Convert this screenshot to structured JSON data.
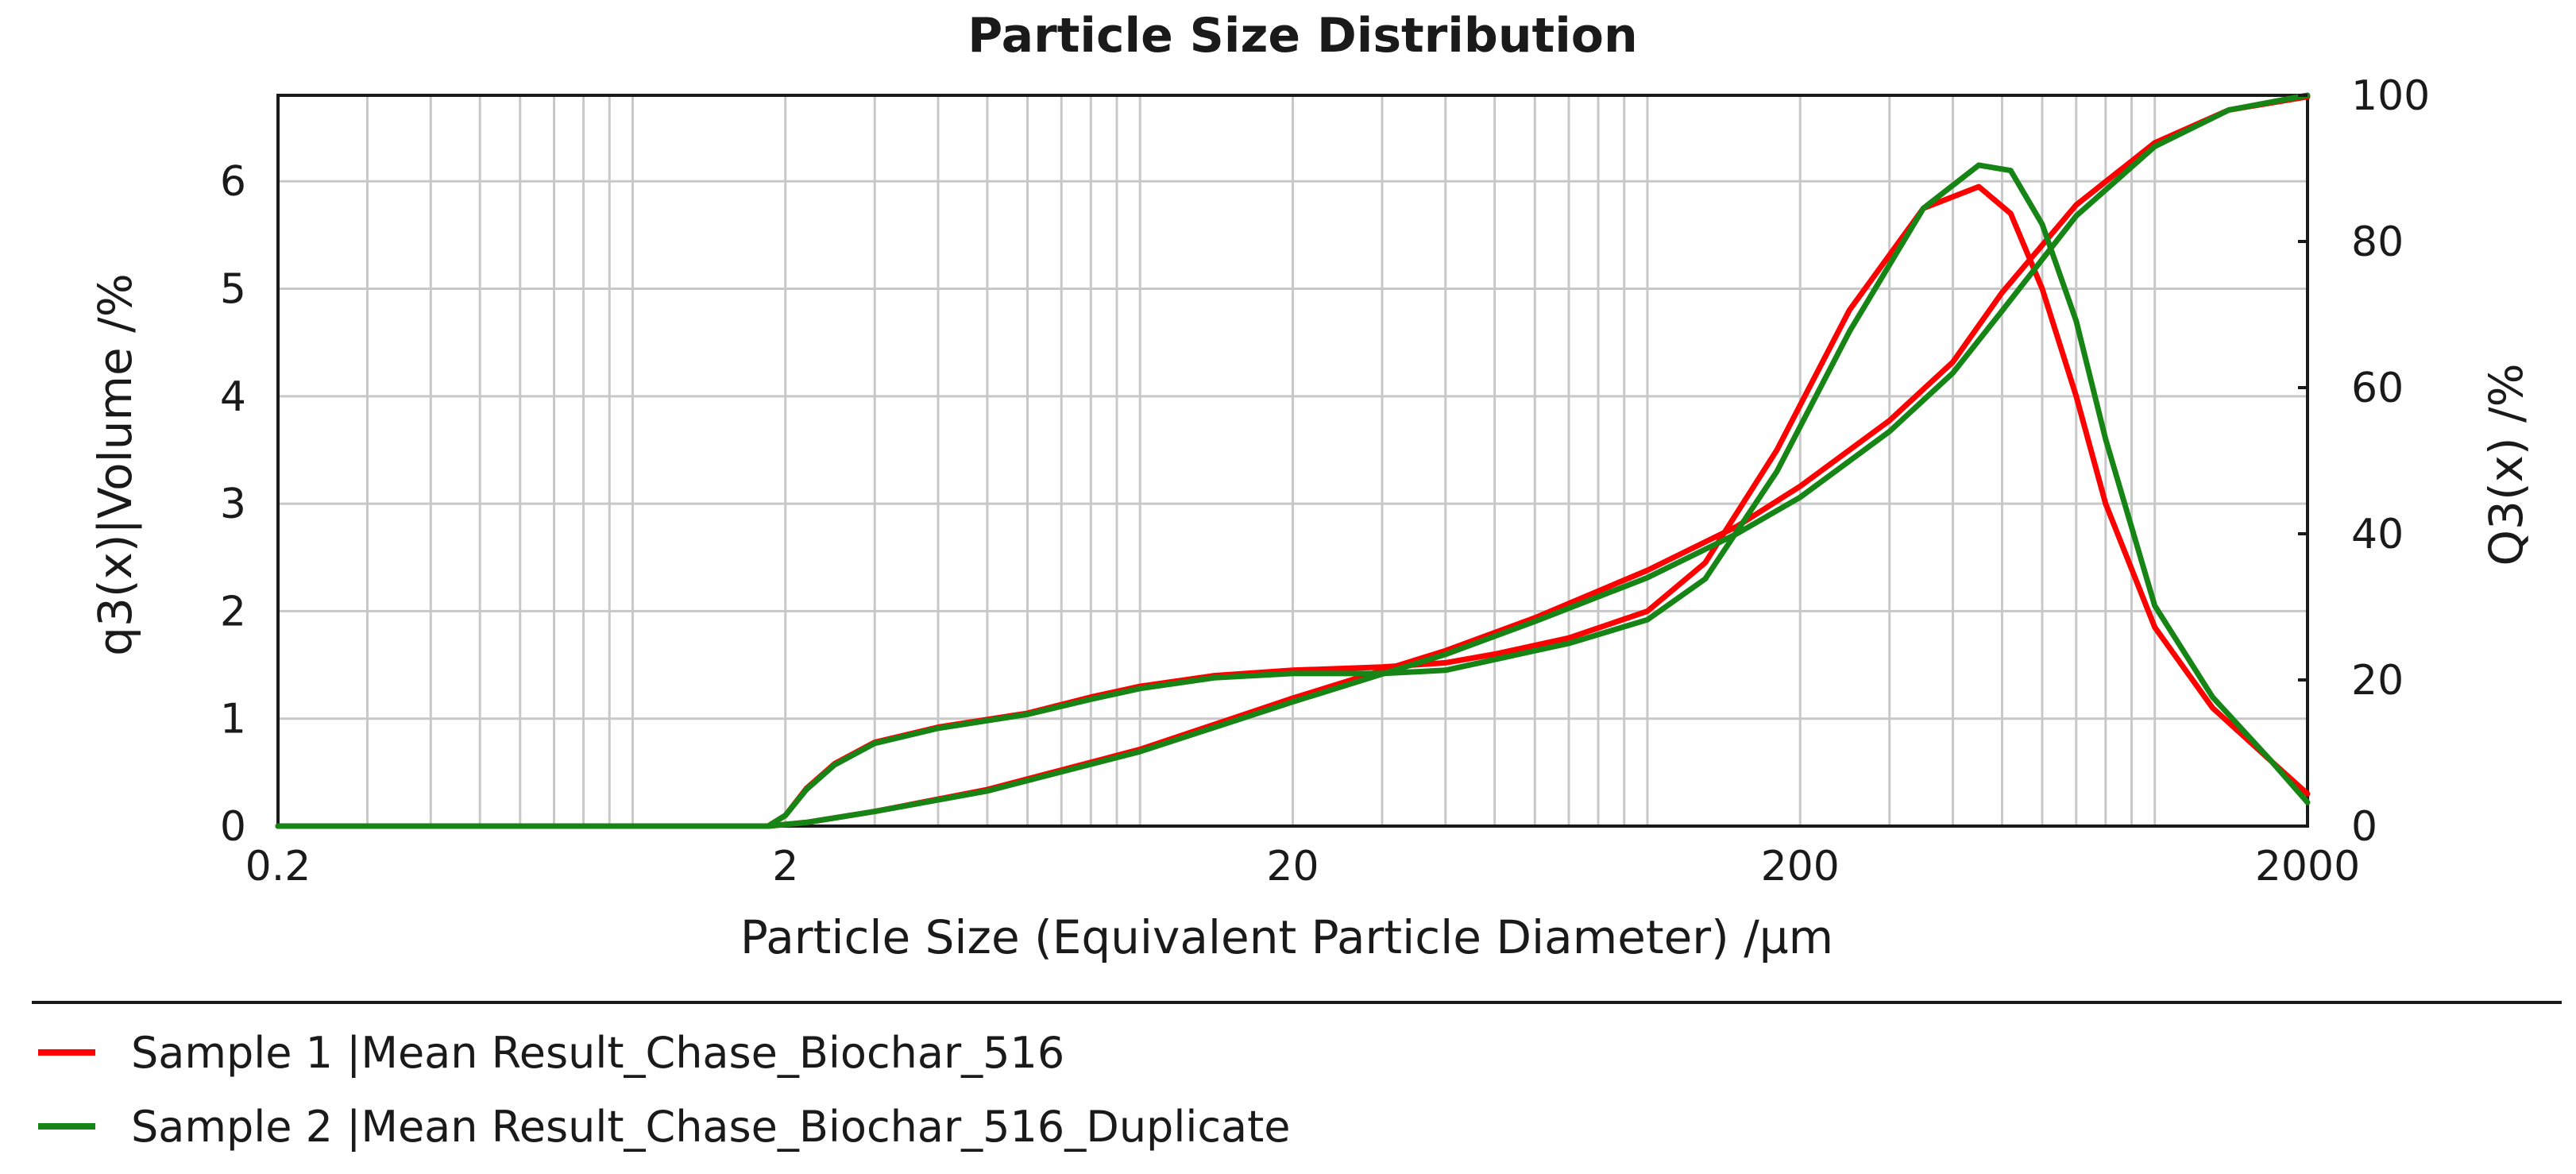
{
  "chart_data": {
    "type": "line",
    "title": "Particle Size Distribution",
    "xlabel": "Particle Size (Equivalent Particle Diameter) /µm",
    "ylabel_left": "q3(x)|Volume /%",
    "ylabel_right": "Q3(x) /%",
    "x_scale": "log",
    "xlim": [
      0.2,
      2000
    ],
    "ylim_left": [
      0,
      6.8
    ],
    "ylim_right": [
      0,
      100
    ],
    "x_tick_labels": [
      "0.2",
      "2",
      "20",
      "200",
      "2000"
    ],
    "y_left_tick_labels": [
      "0",
      "1",
      "2",
      "3",
      "4",
      "5",
      "6"
    ],
    "y_right_tick_labels": [
      "0",
      "20",
      "40",
      "60",
      "80",
      "100"
    ],
    "grid": true,
    "legend_position": "bottom",
    "series": [
      {
        "name": "Sample 1 |Mean Result_Chase_Biochar_516",
        "color": "#ff0000",
        "q3": {
          "x": [
            0.2,
            1.5,
            1.85,
            2.0,
            2.2,
            2.5,
            3,
            4,
            6,
            8,
            10,
            14,
            20,
            30,
            40,
            50,
            70,
            100,
            130,
            180,
            250,
            350,
            450,
            520,
            600,
            700,
            800,
            1000,
            1300,
            1700,
            2000
          ],
          "y": [
            0,
            0,
            0,
            0.1,
            0.35,
            0.58,
            0.78,
            0.92,
            1.05,
            1.2,
            1.3,
            1.4,
            1.45,
            1.48,
            1.52,
            1.6,
            1.75,
            2.0,
            2.45,
            3.5,
            4.8,
            5.75,
            5.95,
            5.7,
            5.0,
            4.0,
            3.0,
            1.85,
            1.1,
            0.6,
            0.3
          ]
        },
        "Q3": {
          "x": [
            0.2,
            1.85,
            2.2,
            3,
            5,
            10,
            20,
            40,
            60,
            100,
            150,
            200,
            300,
            400,
            500,
            700,
            1000,
            1400,
            2000
          ],
          "y": [
            0,
            0,
            0.5,
            2.0,
            5.0,
            10.5,
            17.5,
            24.0,
            28.5,
            35.0,
            41.0,
            46.5,
            55.5,
            63.5,
            73.0,
            85.0,
            93.5,
            98.0,
            99.8
          ]
        }
      },
      {
        "name": "Sample 2 |Mean Result_Chase_Biochar_516_Duplicate",
        "color": "#168516",
        "q3": {
          "x": [
            0.2,
            1.5,
            1.85,
            2.0,
            2.2,
            2.5,
            3,
            4,
            6,
            8,
            10,
            14,
            20,
            30,
            40,
            50,
            70,
            100,
            130,
            180,
            250,
            350,
            450,
            520,
            600,
            700,
            800,
            1000,
            1300,
            1700,
            2000
          ],
          "y": [
            0,
            0,
            0,
            0.1,
            0.34,
            0.57,
            0.77,
            0.91,
            1.04,
            1.18,
            1.28,
            1.38,
            1.42,
            1.42,
            1.45,
            1.55,
            1.7,
            1.92,
            2.3,
            3.3,
            4.6,
            5.75,
            6.15,
            6.1,
            5.6,
            4.7,
            3.6,
            2.05,
            1.2,
            0.6,
            0.22
          ]
        },
        "Q3": {
          "x": [
            0.2,
            1.85,
            2.2,
            3,
            5,
            10,
            20,
            40,
            60,
            100,
            150,
            200,
            300,
            400,
            500,
            700,
            1000,
            1400,
            2000
          ],
          "y": [
            0,
            0,
            0.5,
            2.0,
            4.8,
            10.2,
            17.0,
            23.5,
            28.0,
            34.0,
            40.0,
            45.0,
            54.0,
            62.0,
            70.5,
            83.5,
            93.0,
            98.0,
            100.0
          ]
        }
      }
    ]
  }
}
